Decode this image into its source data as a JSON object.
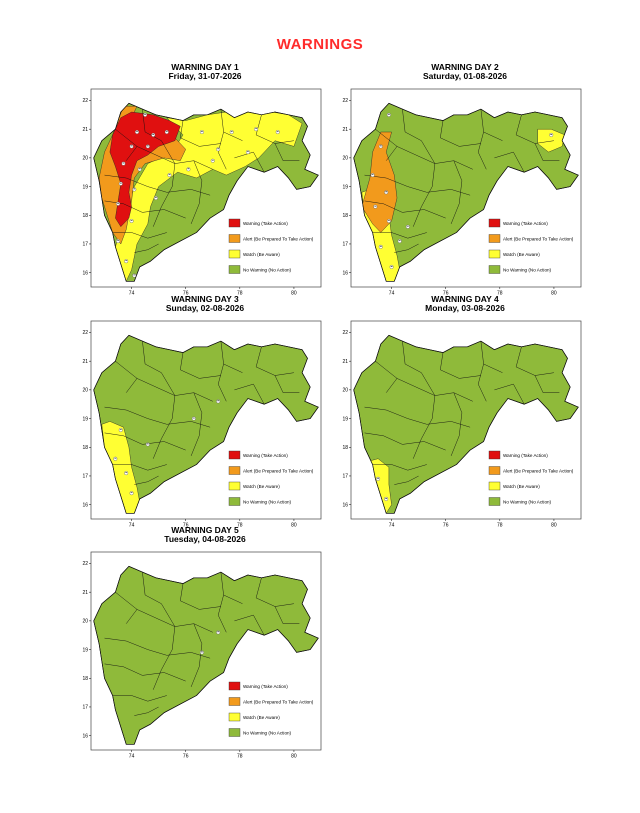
{
  "title": "WARNINGS",
  "title_color": "#ff2b2b",
  "axis": {
    "x_ticks": [
      "74",
      "76",
      "78",
      "80"
    ],
    "y_ticks": [
      "22",
      "21",
      "20",
      "19",
      "18",
      "17",
      "16"
    ]
  },
  "legend": [
    {
      "label": "Warning (Take Action)",
      "color": "#e01010"
    },
    {
      "label": "Alert (Be Prepared To Take Action)",
      "color": "#f29a1c"
    },
    {
      "label": "Watch (Be Aware)",
      "color": "#ffff33"
    },
    {
      "label": "No Warning (No Action)",
      "color": "#8fba3a"
    }
  ],
  "panels": [
    {
      "day": "WARNING DAY 1",
      "date": "Friday, 31-07-2026",
      "zones": [
        "red",
        "orange",
        "yellow",
        "green"
      ]
    },
    {
      "day": "WARNING DAY 2",
      "date": "Saturday, 01-08-2026",
      "zones": [
        "yellow_coast",
        "orange_coast",
        "yellow_east",
        "green"
      ]
    },
    {
      "day": "WARNING DAY 3",
      "date": "Sunday, 02-08-2026",
      "zones": [
        "yellow_coast",
        "green"
      ]
    },
    {
      "day": "WARNING DAY 4",
      "date": "Monday, 03-08-2026",
      "zones": [
        "yellow_south",
        "green"
      ]
    },
    {
      "day": "WARNING DAY 5",
      "date": "Tuesday, 04-08-2026",
      "zones": [
        "green"
      ]
    }
  ]
}
